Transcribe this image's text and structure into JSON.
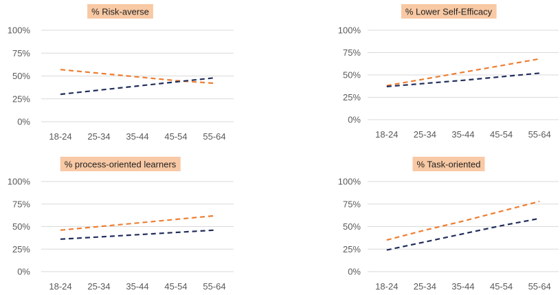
{
  "chart_data": [
    {
      "type": "line",
      "title": "% Risk-averse",
      "categories": [
        "18-24",
        "25-34",
        "35-44",
        "45-54",
        "55-64"
      ],
      "ylim": [
        0,
        100
      ],
      "yticks": [
        "0%",
        "25%",
        "50%",
        "75%",
        "100%"
      ],
      "grid": true,
      "series": [
        {
          "values": [
            57,
            53,
            49,
            45,
            42
          ],
          "color": "#ed7d31",
          "style": "dashed"
        },
        {
          "values": [
            30,
            34.5,
            39,
            43.5,
            48
          ],
          "color": "#1f2d5a",
          "style": "dashed"
        }
      ]
    },
    {
      "type": "line",
      "title": "% Lower Self-Efficacy",
      "categories": [
        "18-24",
        "25-34",
        "35-44",
        "45-54",
        "55-64"
      ],
      "ylim": [
        0,
        100
      ],
      "yticks": [
        "0%",
        "25%",
        "50%",
        "75%",
        "100%"
      ],
      "grid": true,
      "series": [
        {
          "values": [
            38,
            45.5,
            53,
            60.5,
            68
          ],
          "color": "#ed7d31",
          "style": "dashed"
        },
        {
          "values": [
            37,
            40.5,
            44,
            48,
            52
          ],
          "color": "#1f2d5a",
          "style": "dashed"
        }
      ]
    },
    {
      "type": "line",
      "title": "% process-oriented learners",
      "categories": [
        "18-24",
        "25-34",
        "35-44",
        "45-54",
        "55-64"
      ],
      "ylim": [
        0,
        100
      ],
      "yticks": [
        "0%",
        "25%",
        "50%",
        "75%",
        "100%"
      ],
      "grid": true,
      "series": [
        {
          "values": [
            46,
            50,
            54,
            58,
            62
          ],
          "color": "#ed7d31",
          "style": "dashed"
        },
        {
          "values": [
            36,
            38.5,
            41,
            43.5,
            46
          ],
          "color": "#1f2d5a",
          "style": "dashed"
        }
      ]
    },
    {
      "type": "line",
      "title": "% Task-oriented",
      "categories": [
        "18-24",
        "25-34",
        "35-44",
        "45-54",
        "55-64"
      ],
      "ylim": [
        0,
        100
      ],
      "yticks": [
        "0%",
        "25%",
        "50%",
        "75%",
        "100%"
      ],
      "grid": true,
      "series": [
        {
          "values": [
            35,
            46,
            56,
            67,
            78
          ],
          "color": "#ed7d31",
          "style": "dashed"
        },
        {
          "values": [
            24,
            33,
            42,
            51,
            59
          ],
          "color": "#1f2d5a",
          "style": "dashed"
        }
      ]
    }
  ]
}
